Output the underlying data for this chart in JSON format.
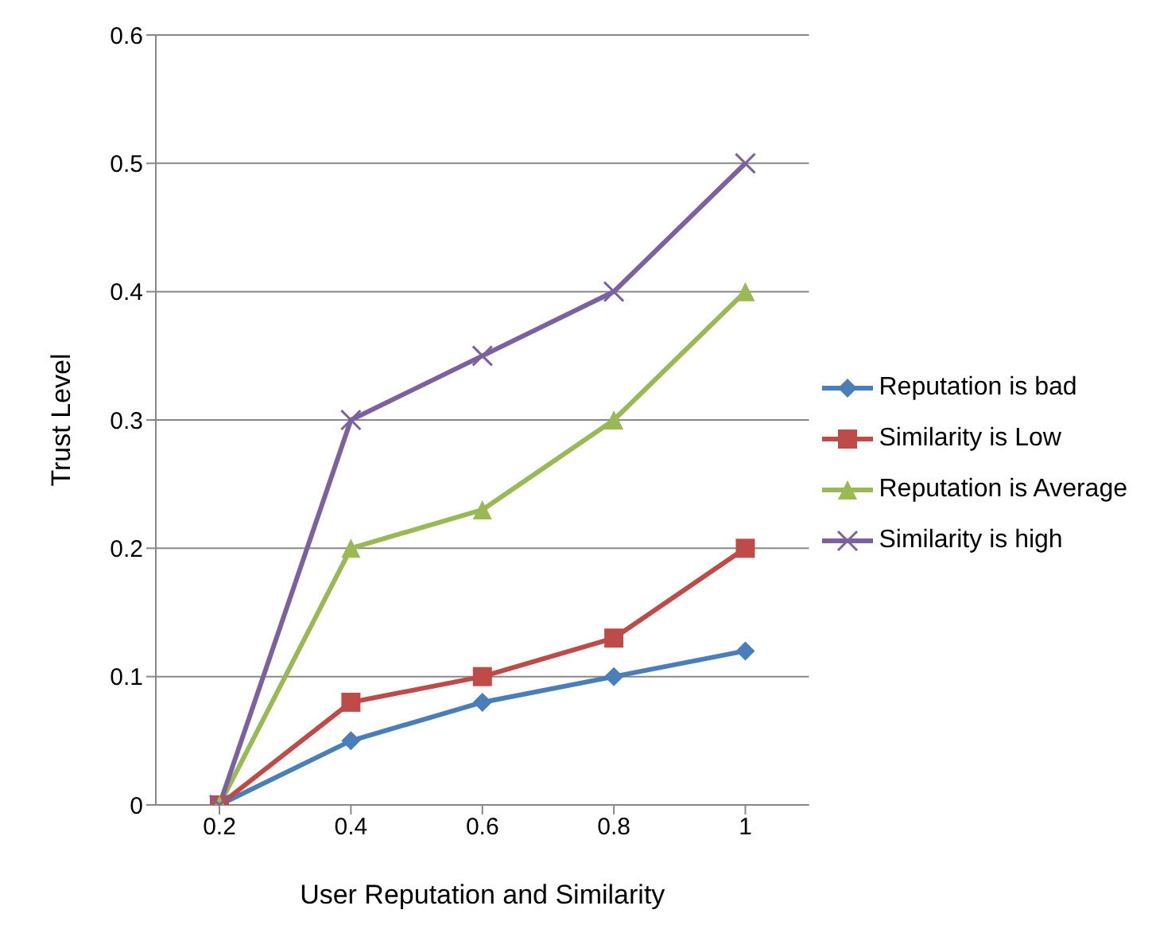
{
  "chart_data": {
    "type": "line",
    "xlabel": "User Reputation and Similarity",
    "ylabel": "Trust Level",
    "categories": [
      "0.2",
      "0.4",
      "0.6",
      "0.8",
      "1"
    ],
    "series": [
      {
        "name": "Reputation is bad",
        "color": "#4a7ebb",
        "marker": "diamond",
        "values": [
          0,
          0.05,
          0.08,
          0.1,
          0.12
        ]
      },
      {
        "name": "Similarity is Low",
        "color": "#be4b48",
        "marker": "square",
        "values": [
          0,
          0.08,
          0.1,
          0.13,
          0.2
        ]
      },
      {
        "name": "Reputation is Average",
        "color": "#98b954",
        "marker": "triangle",
        "values": [
          0,
          0.2,
          0.23,
          0.3,
          0.4
        ]
      },
      {
        "name": "Similarity is high",
        "color": "#7d60a0",
        "marker": "cross",
        "values": [
          0,
          0.3,
          0.35,
          0.4,
          0.5
        ]
      }
    ],
    "ylim": [
      0,
      0.6
    ],
    "yticks": [
      0,
      0.1,
      0.2,
      0.3,
      0.4,
      0.5,
      0.6
    ],
    "grid": "y",
    "legend": "right",
    "line_style": "solid"
  }
}
